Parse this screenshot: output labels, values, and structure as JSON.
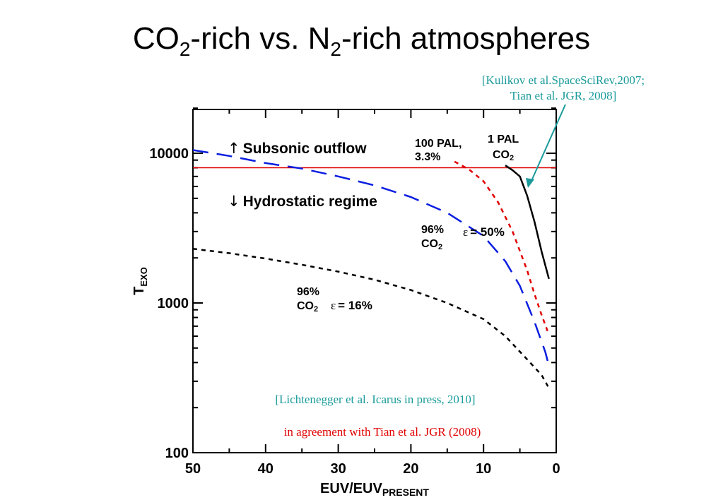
{
  "title": {
    "part1": "CO",
    "sub1": "2",
    "part2": "-rich vs. N",
    "sub2": "2",
    "part3": "-rich atmospheres"
  },
  "colors": {
    "teal_citation": "#1a9a9a",
    "red_citation": "#e00000",
    "threshold_line": "#e00000"
  },
  "chart_data": {
    "type": "line",
    "y_scale": "log",
    "xlim": [
      50,
      0
    ],
    "ylim": [
      100,
      20000
    ],
    "x_ticks": [
      50,
      40,
      30,
      20,
      10,
      0
    ],
    "y_ticks": [
      100,
      1000,
      10000
    ],
    "xlabel": {
      "main": "EUV/EUV",
      "sub": "PRESENT"
    },
    "ylabel": {
      "main": "T",
      "sub": "EXO"
    },
    "threshold": {
      "value": 8000,
      "color": "#e00000"
    },
    "series": [
      {
        "color": "#000000",
        "dash": "dotted",
        "points": [
          [
            50,
            2300
          ],
          [
            45,
            2150
          ],
          [
            40,
            1980
          ],
          [
            35,
            1800
          ],
          [
            30,
            1620
          ],
          [
            25,
            1430
          ],
          [
            20,
            1220
          ],
          [
            15,
            1000
          ],
          [
            10,
            780
          ],
          [
            7,
            600
          ],
          [
            4,
            420
          ],
          [
            2,
            330
          ],
          [
            1,
            270
          ]
        ]
      },
      {
        "color": "#0a1ee0",
        "dash": "dashed",
        "points": [
          [
            50,
            10500
          ],
          [
            45,
            9600
          ],
          [
            40,
            8600
          ],
          [
            35,
            7900
          ],
          [
            30,
            7000
          ],
          [
            25,
            6100
          ],
          [
            20,
            5100
          ],
          [
            15,
            4000
          ],
          [
            10,
            2800
          ],
          [
            7,
            1900
          ],
          [
            5,
            1300
          ],
          [
            3,
            750
          ],
          [
            1.5,
            470
          ],
          [
            1,
            380
          ]
        ]
      },
      {
        "color": "#e00000",
        "dash": "dotted",
        "points": [
          [
            14,
            8800
          ],
          [
            12,
            7800
          ],
          [
            10,
            6500
          ],
          [
            8,
            4700
          ],
          [
            6,
            3000
          ],
          [
            4,
            1650
          ],
          [
            3,
            1150
          ],
          [
            2,
            830
          ],
          [
            1.2,
            650
          ]
        ]
      },
      {
        "color": "#000000",
        "dash": "solid",
        "points": [
          [
            7,
            8300
          ],
          [
            6,
            7700
          ],
          [
            5,
            7000
          ],
          [
            4,
            5200
          ],
          [
            3,
            3500
          ],
          [
            2,
            2200
          ],
          [
            1,
            1450
          ]
        ]
      }
    ],
    "annotations": {
      "subsonic": {
        "arrow": "↑",
        "text": "Subsonic outflow"
      },
      "hydrostatic": {
        "arrow": "↓",
        "text": "Hydrostatic regime"
      },
      "pal100": {
        "line1": "100 PAL,",
        "line2": "3.3%"
      },
      "pal1": {
        "line1": "1 PAL",
        "line2": "CO",
        "line2_sub": "2"
      },
      "blue_co2": {
        "line1": "96%",
        "line2": "CO",
        "line2_sub": "2"
      },
      "blue_eps": {
        "eps": "ε",
        "text": "= 50%"
      },
      "black_co2": {
        "line1": "96%",
        "line2": "CO",
        "line2_sub": "2"
      },
      "black_eps": {
        "eps": "ε",
        "text": "= 16%"
      }
    },
    "citations": {
      "kulikov_line1": "[Kulikov et al.SpaceSciRev,2007;",
      "kulikov_line2": "Tian et al. JGR, 2008]",
      "lichtenegger": "[Lichtenegger et al. Icarus in press, 2010]",
      "agreement": "in agreement with Tian et al. JGR (2008)"
    }
  }
}
